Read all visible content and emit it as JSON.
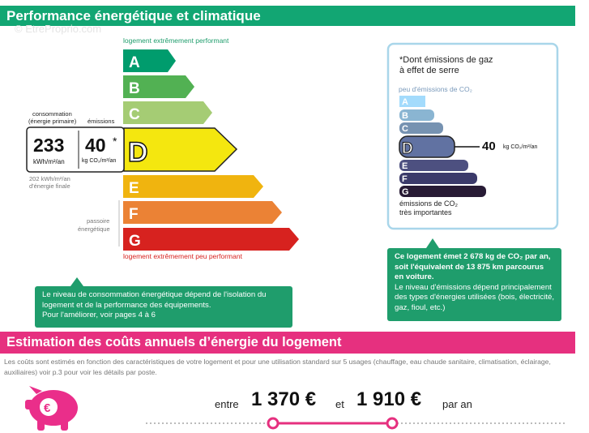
{
  "header": {
    "title": "Performance énergétique et climatique",
    "watermark": "© EtreProprio.com"
  },
  "energy_label": {
    "top_label": "logement extrêmement performant",
    "bottom_label": "logement extrêmement peu performant",
    "classes": [
      "A",
      "B",
      "C",
      "D",
      "E",
      "F",
      "G"
    ],
    "consumption_caption": "consommation",
    "consumption_caption_2": "(énergie primaire)",
    "emissions_caption": "émissions",
    "consumption_value": "233",
    "consumption_unit": "kWh/m²/an",
    "emissions_value": "40",
    "emissions_star": "*",
    "emissions_unit": "kg CO₂/m²/an",
    "final_energy": "202 kWh/m²/an",
    "final_energy_caption": "d'énergie finale",
    "passoire": "passoire",
    "passoire_2": "énergétique",
    "note": "Le niveau de consommation énergétique dépend de l'isolation du logement et de la performance des équipements.",
    "note_2": "Pour l'améliorer, voir pages 4 à 6"
  },
  "emissions_label": {
    "title": "*Dont émissions de gaz",
    "title_2": "à effet de serre",
    "top_label": "peu d'émissions de CO₂",
    "classes": [
      "A",
      "B",
      "C",
      "D",
      "E",
      "F",
      "G"
    ],
    "value": "40",
    "unit": "kg CO₂/m²/an",
    "bottom_label": "émissions de CO₂",
    "bottom_label_2": "très importantes",
    "note_bold": "Ce logement émet 2 678 kg de CO₂ par an, soit l'équivalent de 13 875 km parcourus en voiture.",
    "note": "Le niveau d'émissions dépend principalement des types d'énergies utilisées (bois, électricité, gaz, fioul, etc.)"
  },
  "costs": {
    "title": "Estimation des coûts annuels d’énergie du logement",
    "description": "Les coûts sont estimés en fonction des caractéristiques de votre logement et pour une utilisation standard sur 5 usages (chauffage, eau chaude sanitaire, climatisation, éclairage, auxiliaires) voir p.3 pour voir les détails par poste.",
    "between": "entre",
    "low": "1 370 €",
    "and": "et",
    "high": "1 910 €",
    "per_year": "par an"
  }
}
